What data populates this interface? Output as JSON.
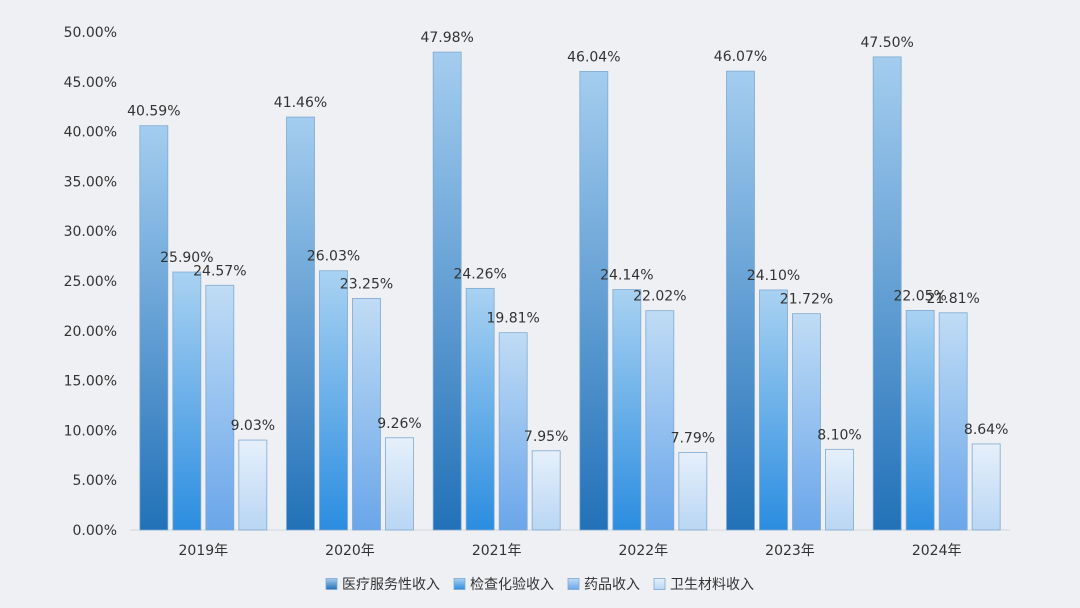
{
  "chart_data": {
    "type": "bar",
    "categories": [
      "2019年",
      "2020年",
      "2021年",
      "2022年",
      "2023年",
      "2024年"
    ],
    "series": [
      {
        "name": "医疗服务性收入",
        "values": [
          40.59,
          41.46,
          47.98,
          46.04,
          46.07,
          47.5
        ],
        "labels": [
          "40.59%",
          "41.46%",
          "47.98%",
          "46.04%",
          "46.07%",
          "47.50%"
        ],
        "color_top": "#a4cdef",
        "color_bottom": "#2271b8"
      },
      {
        "name": "检查化验收入",
        "values": [
          25.9,
          26.03,
          24.26,
          24.14,
          24.1,
          22.05
        ],
        "labels": [
          "25.90%",
          "26.03%",
          "24.26%",
          "24.14%",
          "24.10%",
          "22.05%"
        ],
        "color_top": "#a9d2f2",
        "color_bottom": "#2b8de0"
      },
      {
        "name": "药品收入",
        "values": [
          24.57,
          23.25,
          19.81,
          22.02,
          21.72,
          21.81
        ],
        "labels": [
          "24.57%",
          "23.25%",
          "19.81%",
          "22.02%",
          "21.72%",
          "21.81%"
        ],
        "color_top": "#c0dcf5",
        "color_bottom": "#6aa6ea"
      },
      {
        "name": "卫生材料收入",
        "values": [
          9.03,
          9.26,
          7.95,
          7.79,
          8.1,
          8.64
        ],
        "labels": [
          "9.03%",
          "9.26%",
          "7.95%",
          "7.79%",
          "8.10%",
          "8.64%"
        ],
        "color_top": "#e6f0fb",
        "color_bottom": "#b9d6f3"
      }
    ],
    "y_ticks": [
      "0.00%",
      "5.00%",
      "10.00%",
      "15.00%",
      "20.00%",
      "25.00%",
      "30.00%",
      "35.00%",
      "40.00%",
      "45.00%",
      "50.00%"
    ],
    "ylim": [
      0,
      50
    ],
    "grid": false,
    "legend_position": "bottom",
    "title": "",
    "xlabel": "",
    "ylabel": ""
  }
}
